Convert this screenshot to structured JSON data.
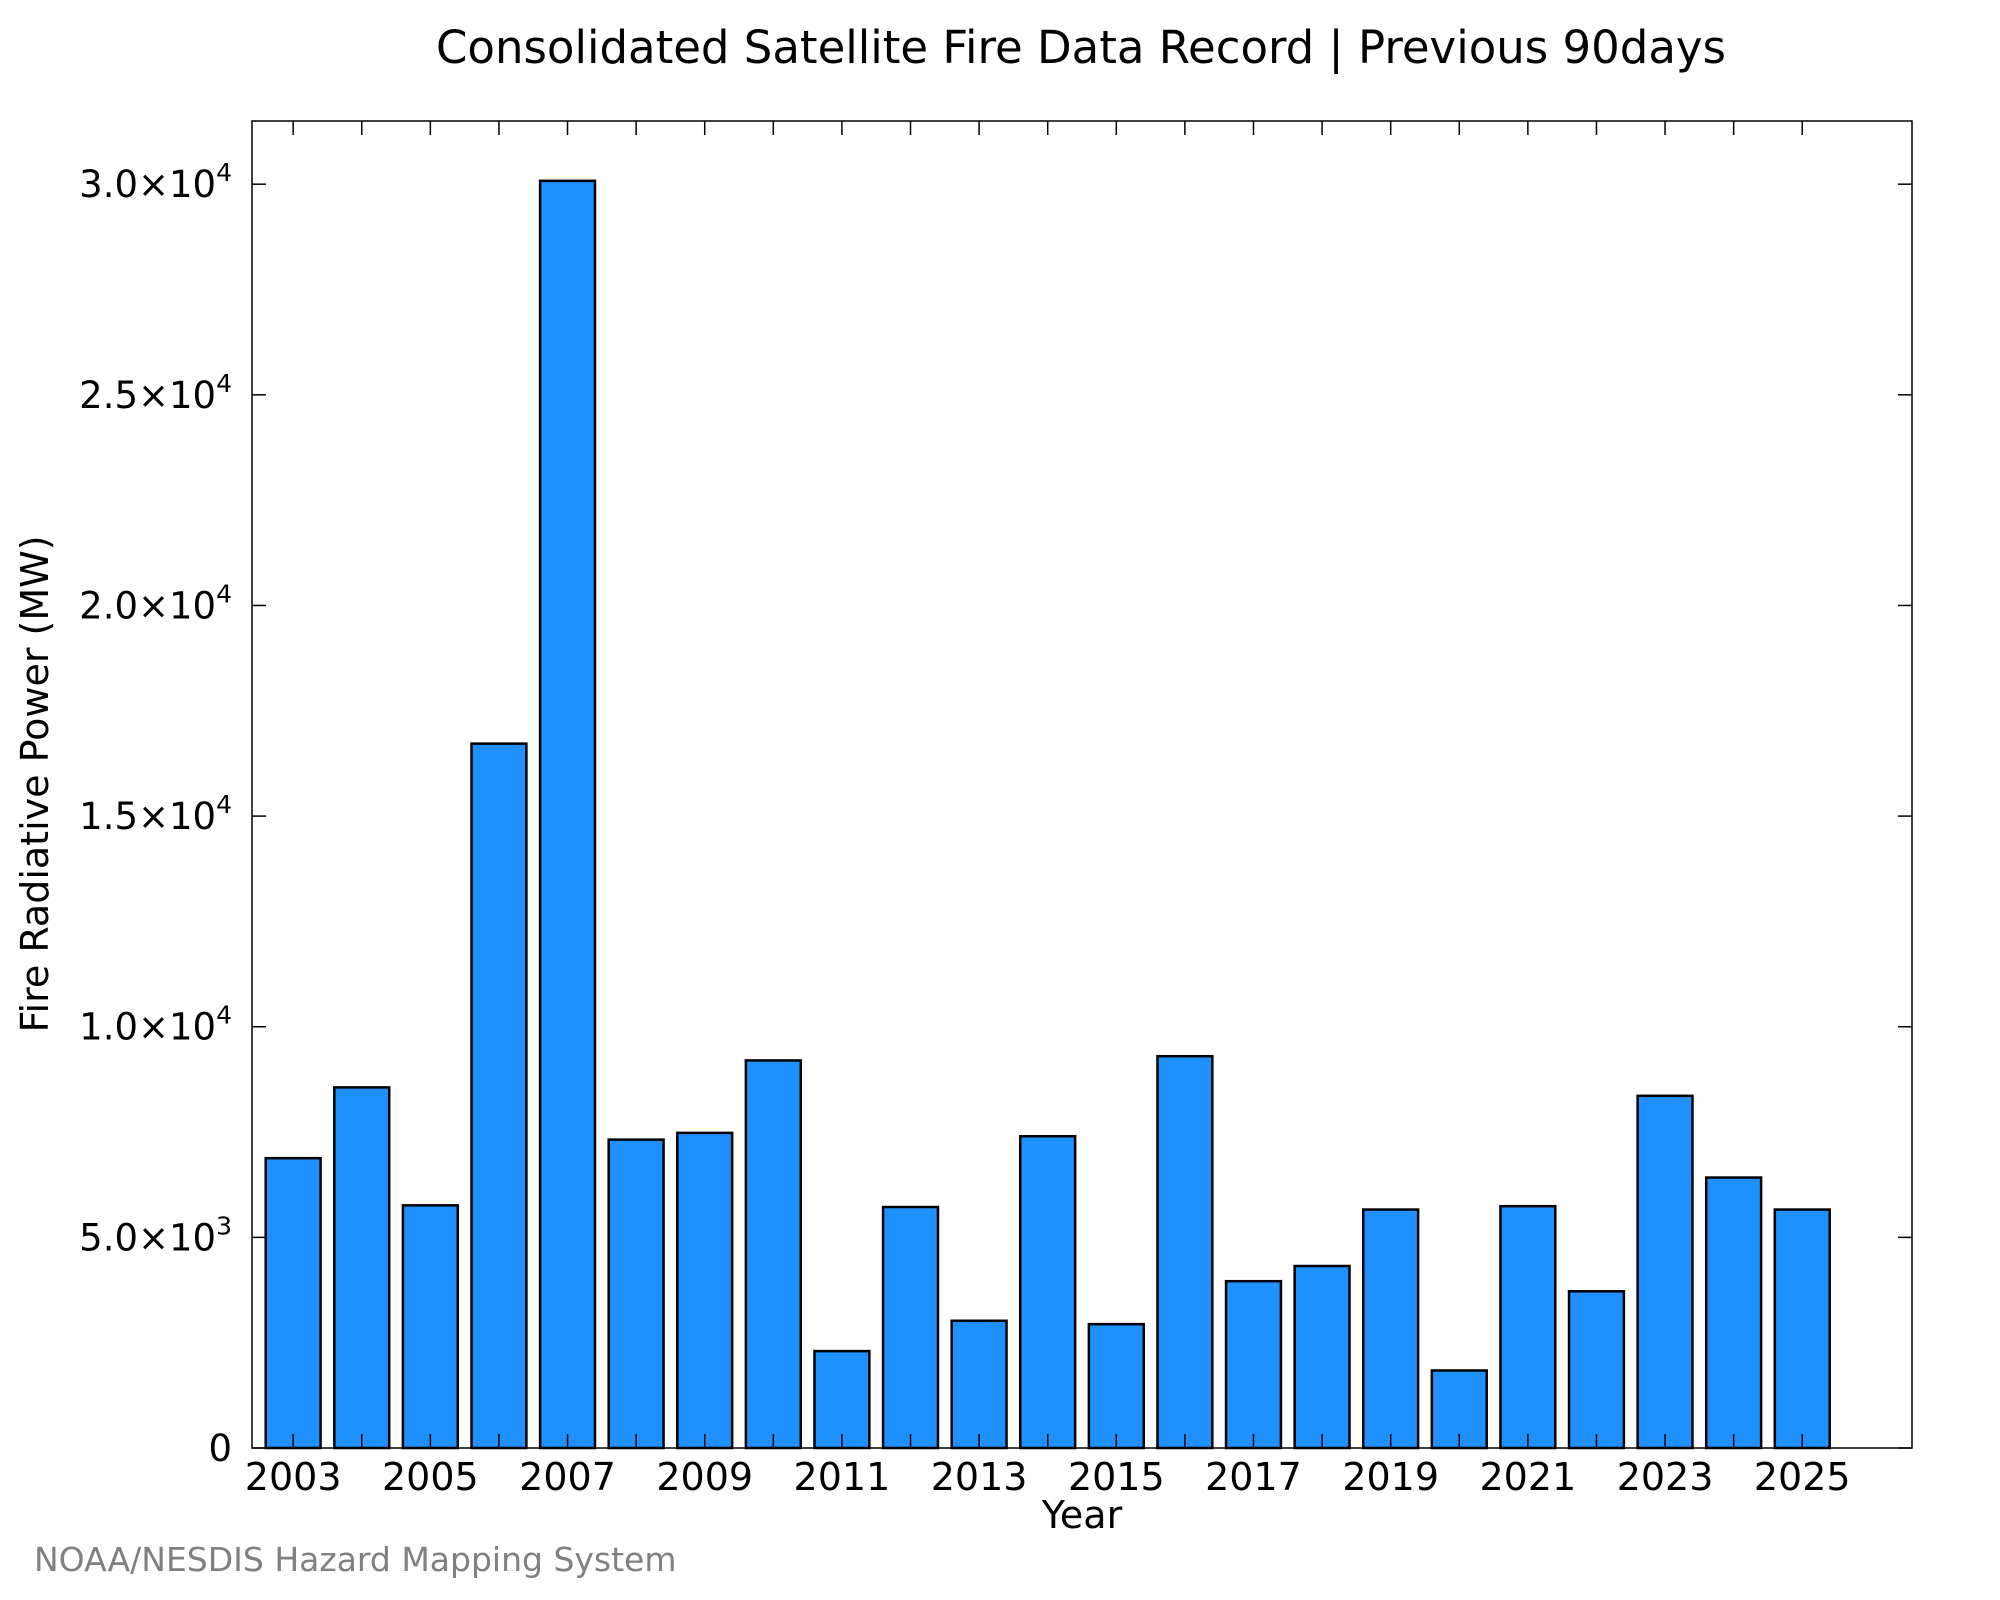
{
  "chart_data": {
    "type": "bar",
    "title": "Consolidated Satellite Fire Data Record | Previous 90days",
    "xlabel": "Year",
    "ylabel": "Fire Radiative Power (MW)",
    "credit": "NOAA/NESDIS Hazard Mapping System",
    "categories": [
      "2003",
      "2004",
      "2005",
      "2006",
      "2007",
      "2008",
      "2009",
      "2010",
      "2011",
      "2012",
      "2013",
      "2014",
      "2015",
      "2016",
      "2017",
      "2018",
      "2019",
      "2020",
      "2021",
      "2022",
      "2023",
      "2024",
      "2025"
    ],
    "values": [
      6880,
      8560,
      5760,
      16720,
      30080,
      7320,
      7480,
      9200,
      2300,
      5720,
      3020,
      7400,
      2940,
      9300,
      3960,
      4320,
      5660,
      1840,
      5740,
      3720,
      8360,
      6420,
      5660
    ],
    "x_tick_labels": [
      "2003",
      "2005",
      "2007",
      "2009",
      "2011",
      "2013",
      "2015",
      "2017",
      "2019",
      "2021",
      "2023",
      "2025"
    ],
    "y_ticks": [
      {
        "value": 0,
        "label": "0",
        "exp": ""
      },
      {
        "value": 5000,
        "label": "5.0×10",
        "exp": "3"
      },
      {
        "value": 10000,
        "label": "1.0×10",
        "exp": "4"
      },
      {
        "value": 15000,
        "label": "1.5×10",
        "exp": "4"
      },
      {
        "value": 20000,
        "label": "2.0×10",
        "exp": "4"
      },
      {
        "value": 25000,
        "label": "2.5×10",
        "exp": "4"
      },
      {
        "value": 30000,
        "label": "3.0×10",
        "exp": "4"
      }
    ],
    "xlim": [
      2002.4,
      2026.6
    ],
    "ylim": [
      0,
      31500
    ],
    "grid": false,
    "legend": "none",
    "colors": {
      "bar_fill": "#1E90FF",
      "bar_stroke": "#000000",
      "axis": "#000000",
      "credit": "#808080"
    }
  }
}
